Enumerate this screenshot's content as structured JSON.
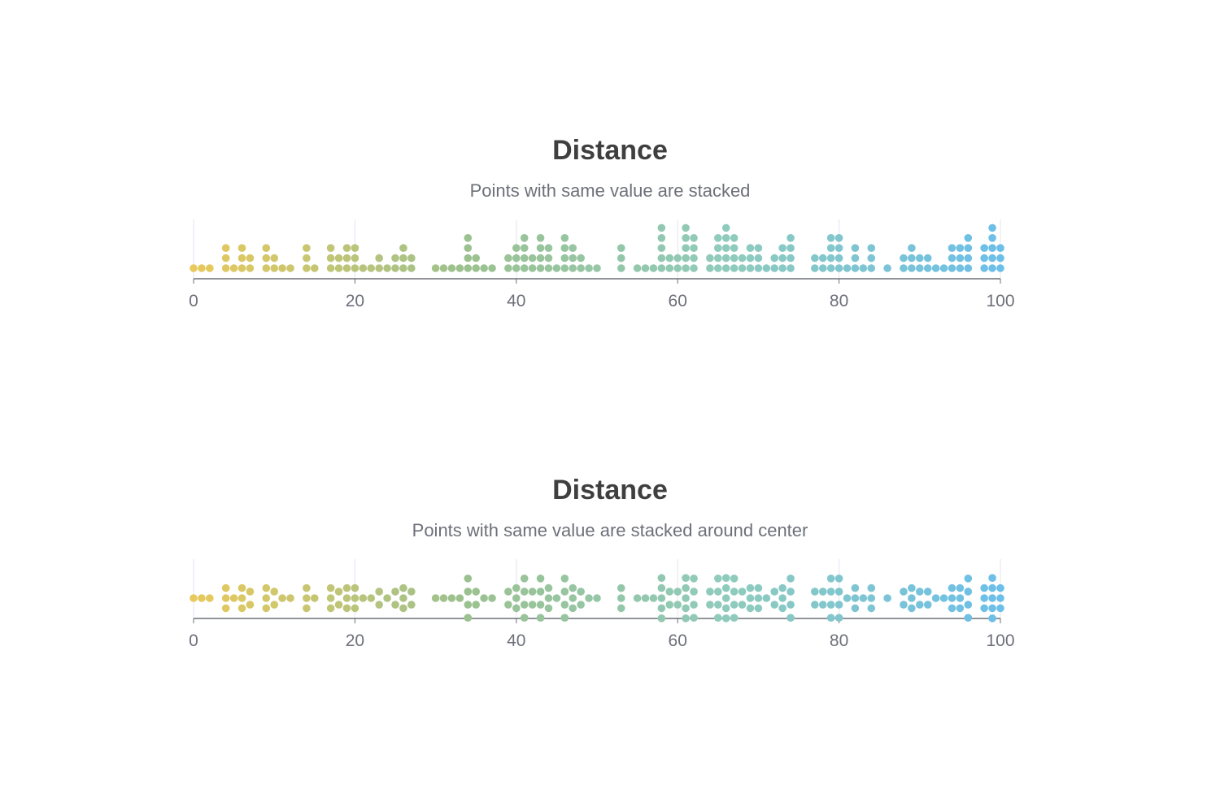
{
  "chart_data": [
    {
      "type": "scatter",
      "title": "Distance",
      "subtitle": "Points with same value are stacked",
      "stacking": "stacked",
      "xlim": [
        0,
        100
      ],
      "xticks": [
        "0",
        "20",
        "40",
        "60",
        "80",
        "100"
      ],
      "grid": "vertical",
      "color_scale": [
        "#e8c95b",
        "#9cc18f",
        "#8fcbbd",
        "#6cbfe9"
      ],
      "values": [
        [
          0,
          1
        ],
        [
          1,
          1
        ],
        [
          2,
          1
        ],
        [
          4,
          3
        ],
        [
          5,
          1
        ],
        [
          6,
          3
        ],
        [
          7,
          2
        ],
        [
          9,
          3
        ],
        [
          10,
          2
        ],
        [
          11,
          1
        ],
        [
          12,
          1
        ],
        [
          14,
          3
        ],
        [
          15,
          1
        ],
        [
          17,
          3
        ],
        [
          18,
          2
        ],
        [
          19,
          3
        ],
        [
          20,
          3
        ],
        [
          21,
          1
        ],
        [
          22,
          1
        ],
        [
          23,
          2
        ],
        [
          24,
          1
        ],
        [
          25,
          2
        ],
        [
          26,
          3
        ],
        [
          27,
          2
        ],
        [
          30,
          1
        ],
        [
          31,
          1
        ],
        [
          32,
          1
        ],
        [
          33,
          1
        ],
        [
          34,
          4
        ],
        [
          35,
          2
        ],
        [
          36,
          1
        ],
        [
          37,
          1
        ],
        [
          39,
          2
        ],
        [
          40,
          3
        ],
        [
          41,
          4
        ],
        [
          42,
          2
        ],
        [
          43,
          4
        ],
        [
          44,
          3
        ],
        [
          45,
          1
        ],
        [
          46,
          4
        ],
        [
          47,
          3
        ],
        [
          48,
          2
        ],
        [
          49,
          1
        ],
        [
          50,
          1
        ],
        [
          53,
          3
        ],
        [
          55,
          1
        ],
        [
          56,
          1
        ],
        [
          57,
          1
        ],
        [
          58,
          5
        ],
        [
          59,
          2
        ],
        [
          60,
          2
        ],
        [
          61,
          5
        ],
        [
          62,
          4
        ],
        [
          64,
          2
        ],
        [
          65,
          4
        ],
        [
          66,
          5
        ],
        [
          67,
          4
        ],
        [
          68,
          2
        ],
        [
          69,
          3
        ],
        [
          70,
          3
        ],
        [
          71,
          1
        ],
        [
          72,
          2
        ],
        [
          73,
          3
        ],
        [
          74,
          4
        ],
        [
          77,
          2
        ],
        [
          78,
          2
        ],
        [
          79,
          4
        ],
        [
          80,
          4
        ],
        [
          81,
          1
        ],
        [
          82,
          3
        ],
        [
          83,
          1
        ],
        [
          84,
          3
        ],
        [
          86,
          1
        ],
        [
          88,
          2
        ],
        [
          89,
          3
        ],
        [
          90,
          2
        ],
        [
          91,
          2
        ],
        [
          92,
          1
        ],
        [
          93,
          1
        ],
        [
          94,
          3
        ],
        [
          95,
          3
        ],
        [
          96,
          4
        ],
        [
          98,
          3
        ],
        [
          99,
          5
        ],
        [
          100,
          3
        ]
      ]
    },
    {
      "type": "scatter",
      "title": "Distance",
      "subtitle": "Points with same value are stacked around center",
      "stacking": "centered",
      "xlim": [
        0,
        100
      ],
      "xticks": [
        "0",
        "20",
        "40",
        "60",
        "80",
        "100"
      ],
      "grid": "vertical",
      "color_scale": [
        "#e8c95b",
        "#9cc18f",
        "#8fcbbd",
        "#6cbfe9"
      ],
      "values": [
        [
          0,
          1
        ],
        [
          1,
          1
        ],
        [
          2,
          1
        ],
        [
          4,
          3
        ],
        [
          5,
          1
        ],
        [
          6,
          3
        ],
        [
          7,
          2
        ],
        [
          9,
          3
        ],
        [
          10,
          2
        ],
        [
          11,
          1
        ],
        [
          12,
          1
        ],
        [
          14,
          3
        ],
        [
          15,
          1
        ],
        [
          17,
          3
        ],
        [
          18,
          2
        ],
        [
          19,
          3
        ],
        [
          20,
          3
        ],
        [
          21,
          1
        ],
        [
          22,
          1
        ],
        [
          23,
          2
        ],
        [
          24,
          1
        ],
        [
          25,
          2
        ],
        [
          26,
          3
        ],
        [
          27,
          2
        ],
        [
          30,
          1
        ],
        [
          31,
          1
        ],
        [
          32,
          1
        ],
        [
          33,
          1
        ],
        [
          34,
          4
        ],
        [
          35,
          2
        ],
        [
          36,
          1
        ],
        [
          37,
          1
        ],
        [
          39,
          2
        ],
        [
          40,
          3
        ],
        [
          41,
          4
        ],
        [
          42,
          2
        ],
        [
          43,
          4
        ],
        [
          44,
          3
        ],
        [
          45,
          1
        ],
        [
          46,
          4
        ],
        [
          47,
          3
        ],
        [
          48,
          2
        ],
        [
          49,
          1
        ],
        [
          50,
          1
        ],
        [
          53,
          3
        ],
        [
          55,
          1
        ],
        [
          56,
          1
        ],
        [
          57,
          1
        ],
        [
          58,
          5
        ],
        [
          59,
          2
        ],
        [
          60,
          2
        ],
        [
          61,
          5
        ],
        [
          62,
          4
        ],
        [
          64,
          2
        ],
        [
          65,
          4
        ],
        [
          66,
          5
        ],
        [
          67,
          4
        ],
        [
          68,
          2
        ],
        [
          69,
          3
        ],
        [
          70,
          3
        ],
        [
          71,
          1
        ],
        [
          72,
          2
        ],
        [
          73,
          3
        ],
        [
          74,
          4
        ],
        [
          77,
          2
        ],
        [
          78,
          2
        ],
        [
          79,
          4
        ],
        [
          80,
          4
        ],
        [
          81,
          1
        ],
        [
          82,
          3
        ],
        [
          83,
          1
        ],
        [
          84,
          3
        ],
        [
          86,
          1
        ],
        [
          88,
          2
        ],
        [
          89,
          3
        ],
        [
          90,
          2
        ],
        [
          91,
          2
        ],
        [
          92,
          1
        ],
        [
          93,
          1
        ],
        [
          94,
          3
        ],
        [
          95,
          3
        ],
        [
          96,
          4
        ],
        [
          98,
          3
        ],
        [
          99,
          5
        ],
        [
          100,
          3
        ]
      ]
    }
  ]
}
